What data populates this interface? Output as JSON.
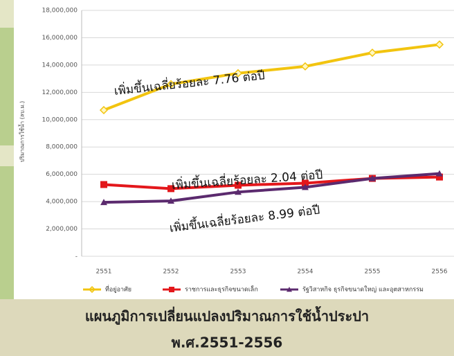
{
  "chart_data": {
    "type": "line",
    "title": "แผนภูมิการเปลี่ยนแปลงปริมาณการใช้น้ำประปา",
    "subtitle": "พ.ศ.2551-2556",
    "y_label": "ปริมาณการใช้น้ำ (ลบ.ม.)",
    "annotations": [
      "เพิ่มขึ้นเฉลี่ยร้อยละ 7.76 ต่อปี",
      "เพิ่มขึ้นเฉลี่ยร้อยละ 2.04 ต่อปี",
      "เพิ่มขึ้นเฉลี่ยร้อยละ 8.99 ต่อปี"
    ],
    "categories": [
      "2551",
      "2552",
      "2553",
      "2554",
      "2555",
      "2556"
    ],
    "series": [
      {
        "name": "ที่อยู่อาศัย",
        "color": "#f2c40f",
        "marker": "diamond",
        "values": [
          10700000,
          12600000,
          13400000,
          13900000,
          14900000,
          15500000
        ]
      },
      {
        "name": "ราชการและธุรกิจขนาดเล็ก",
        "color": "#e3171b",
        "marker": "square",
        "values": [
          5250000,
          4950000,
          5200000,
          5350000,
          5700000,
          5800000
        ]
      },
      {
        "name": "รัฐวิสาหกิจ ธุรกิจขนาดใหญ่ และอุตสาหกรรม",
        "color": "#5b2a6e",
        "marker": "triangle",
        "values": [
          3950000,
          4050000,
          4700000,
          5050000,
          5700000,
          6050000
        ]
      }
    ],
    "ylim": [
      0,
      18000000
    ],
    "yticks": [
      {
        "value": 0,
        "label": "-"
      },
      {
        "value": 2000000,
        "label": "2,000,000"
      },
      {
        "value": 4000000,
        "label": "4,000,000"
      },
      {
        "value": 6000000,
        "label": "6,000,000"
      },
      {
        "value": 8000000,
        "label": "8,000,000"
      },
      {
        "value": 10000000,
        "label": "10,000,000"
      },
      {
        "value": 12000000,
        "label": "12,000,000"
      },
      {
        "value": 14000000,
        "label": "14,000,000"
      },
      {
        "value": 16000000,
        "label": "16,000,000"
      },
      {
        "value": 18000000,
        "label": "18,000,000"
      }
    ],
    "grid": true
  }
}
